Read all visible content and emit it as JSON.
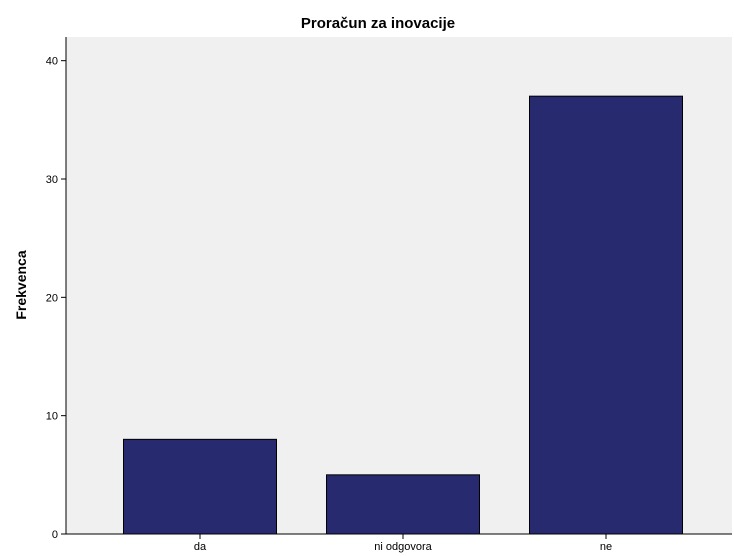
{
  "chart_data": {
    "type": "bar",
    "title": "Proračun za inovacije",
    "xlabel": "",
    "ylabel": "Frekvenca",
    "categories": [
      "da",
      "ni odgovora",
      "ne"
    ],
    "values": [
      8,
      5,
      37
    ],
    "ylim": [
      0,
      42
    ],
    "yticks": [
      0,
      10,
      20,
      30,
      40
    ],
    "grid": false,
    "colors": {
      "bar": "#282a70",
      "plot_background": "#f0f0f0",
      "page_background": "#ffffff"
    }
  }
}
